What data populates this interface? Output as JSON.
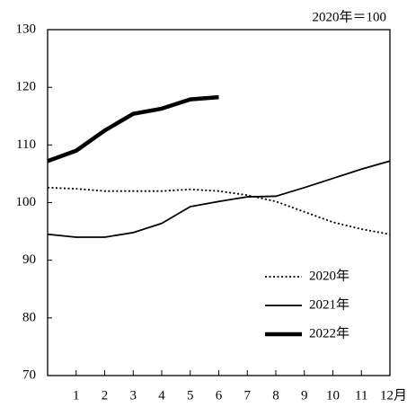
{
  "chart_data": {
    "type": "line",
    "annotation": "2020年＝100",
    "x": [
      0,
      1,
      2,
      3,
      4,
      5,
      6,
      7,
      8,
      9,
      10,
      11,
      12
    ],
    "xlim": [
      0,
      12
    ],
    "xticks": [
      1,
      2,
      3,
      4,
      5,
      6,
      7,
      8,
      9,
      10,
      11,
      {
        "value": 12,
        "label": "12月"
      }
    ],
    "ylim": [
      70,
      130
    ],
    "yticks": [
      70,
      80,
      90,
      100,
      110,
      120,
      130
    ],
    "grid": false,
    "legend": "lower-right",
    "series": [
      {
        "name": "2020年",
        "color": "#000000",
        "line_style": "dotted",
        "weight": "normal",
        "values": [
          102.6,
          102.4,
          102.0,
          102.0,
          102.0,
          102.3,
          102.0,
          101.3,
          100.2,
          98.4,
          96.6,
          95.4,
          94.5
        ]
      },
      {
        "name": "2021年",
        "color": "#000000",
        "line_style": "solid",
        "weight": "normal",
        "values": [
          94.5,
          94.0,
          94.0,
          94.8,
          96.4,
          99.3,
          100.2,
          101.0,
          101.1,
          102.6,
          104.2,
          105.8,
          107.2
        ]
      },
      {
        "name": "2022年",
        "color": "#000000",
        "line_style": "solid",
        "weight": "bold",
        "values": [
          107.2,
          109.0,
          112.5,
          115.4,
          116.3,
          117.9,
          118.3,
          null,
          null,
          null,
          null,
          null,
          null
        ]
      }
    ]
  }
}
